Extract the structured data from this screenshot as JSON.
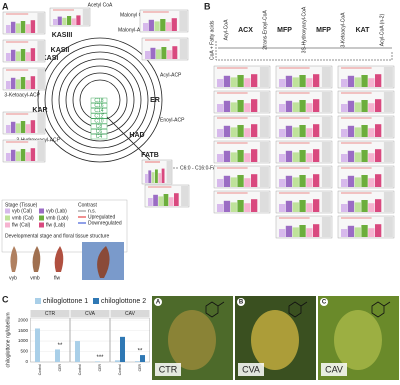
{
  "panel_a": {
    "label": "A",
    "metabolites": [
      "Acetyl CoA",
      "Malonyl CoA",
      "Malonyl-ACP",
      "Acyl-ACP",
      "Enoyl-ACP",
      "3-Hydroxyacyl-ACP",
      "3-Ketoacyl-ACP"
    ],
    "enzymes": [
      "KASIII",
      "KASII",
      "KASI",
      "ER",
      "HAD",
      "KAR",
      "FATB"
    ],
    "chain_lengths": [
      "C18",
      "C16",
      "C14",
      "C12",
      "C10",
      "C8",
      "C6",
      "C4"
    ],
    "product": "C6:0 - C16:0-FA"
  },
  "legend": {
    "stage_title": "Stage (Tissue)",
    "stages": [
      {
        "name": "vyb (Cal)",
        "color": "#d7b9ec"
      },
      {
        "name": "vyb (Lab)",
        "color": "#9b6cc4"
      },
      {
        "name": "vmb (Cal)",
        "color": "#bfe29a"
      },
      {
        "name": "vmb (Lab)",
        "color": "#6cae3c"
      },
      {
        "name": "flw (Cal)",
        "color": "#f6b3d0"
      },
      {
        "name": "flw (Lab)",
        "color": "#d9497f"
      }
    ],
    "contrast_title": "Contrast",
    "contrasts": [
      {
        "name": "n.s.",
        "color": "#888888"
      },
      {
        "name": "Upregulated",
        "color": "#e02020"
      },
      {
        "name": "Downregulated",
        "color": "#2040d0"
      }
    ],
    "dev_title": "Developmental stage and floral tissue structure",
    "dev_stages": [
      "vyb",
      "vmb",
      "flw"
    ]
  },
  "panel_b": {
    "label": "B",
    "start": "CoA + Fatty acids",
    "pathway": [
      "Acyl-CoA",
      "ACX",
      "2trans-Enoyl-CoA",
      "MFP",
      "3S-Hydroxyacyl-CoA",
      "MFP",
      "3-Ketoacyl-CoA",
      "KAT",
      "Acyl-CoA (n-2)"
    ]
  },
  "panel_c": {
    "label": "C",
    "y_label": "chiloglottone ng/labellum",
    "facets": [
      "CTR",
      "CVA",
      "CAV"
    ],
    "categories": [
      "Control",
      "CER"
    ],
    "ylim": [
      0,
      2100
    ],
    "yticks": [
      0,
      500,
      1000,
      1500,
      2000
    ],
    "series": [
      {
        "name": "chiloglottone 1",
        "color": "#a9cfe8",
        "values": [
          [
            1600,
            600
          ],
          [
            1000,
            30
          ],
          [
            80,
            40
          ]
        ]
      },
      {
        "name": "chiloglottone 2",
        "color": "#2f78b4",
        "values": [
          [
            0,
            0
          ],
          [
            0,
            0
          ],
          [
            1200,
            330
          ]
        ]
      }
    ],
    "significance": [
      "**",
      "***",
      "**"
    ]
  },
  "photos": {
    "labels": [
      "A",
      "B",
      "C"
    ],
    "captions": [
      "CTR",
      "CVA",
      "CAV"
    ]
  }
}
